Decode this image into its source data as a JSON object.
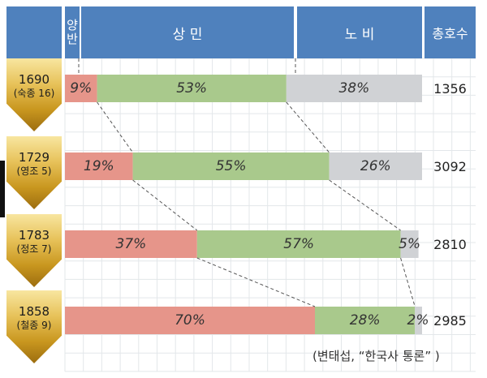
{
  "header": {
    "yangban": "양\n반",
    "sangmin": "상 민",
    "nobi": "노 비",
    "total": "총호수"
  },
  "source_note": "(변태섭, “한국사 통론” )",
  "chart_data": {
    "type": "bar",
    "stacked": "100%",
    "orientation": "horizontal",
    "categories": [
      {
        "year": "1690",
        "king": "(숙종 16)"
      },
      {
        "year": "1729",
        "king": "(영조 5)"
      },
      {
        "year": "1783",
        "king": "(정조 7)"
      },
      {
        "year": "1858",
        "king": "(철종 9)"
      }
    ],
    "series": [
      {
        "name": "양반",
        "color": "#e6958a",
        "values": [
          9,
          19,
          37,
          70
        ]
      },
      {
        "name": "상민",
        "color": "#a9c98c",
        "values": [
          53,
          55,
          57,
          28
        ]
      },
      {
        "name": "노비",
        "color": "#d0d2d5",
        "values": [
          38,
          26,
          5,
          2
        ]
      }
    ],
    "value_suffix": "%",
    "totals": [
      "1356",
      "3092",
      "2810",
      "2985"
    ],
    "grid": true
  }
}
